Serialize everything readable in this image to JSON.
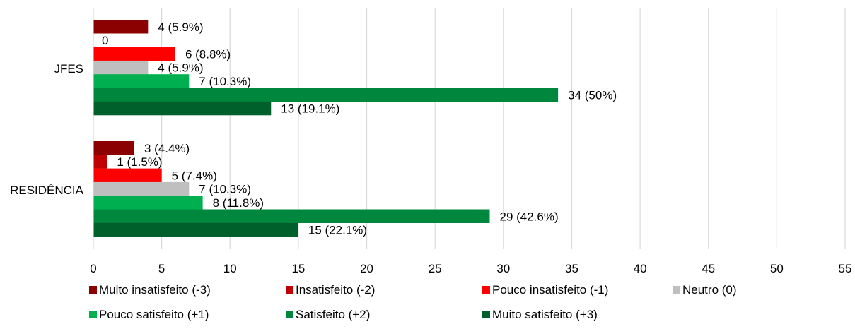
{
  "chart_data": {
    "type": "bar",
    "orientation": "horizontal",
    "title": "",
    "xlabel": "",
    "ylabel": "",
    "xlim": [
      0,
      55
    ],
    "x_ticks": [
      "0",
      "5",
      "10",
      "15",
      "20",
      "25",
      "30",
      "35",
      "40",
      "45",
      "50",
      "55"
    ],
    "grid": true,
    "legend_position": "bottom",
    "categories": [
      "JFES",
      "RESIDÊNCIA"
    ],
    "series": [
      {
        "name": "Muito insatisfeito (-3)",
        "color": "#8B0000",
        "values": [
          4,
          3
        ],
        "labels": [
          "4 (5.9%)",
          "3 (4.4%)"
        ]
      },
      {
        "name": "Insatisfeito (-2)",
        "color": "#C00000",
        "values": [
          0,
          1
        ],
        "labels": [
          "0",
          "1 (1.5%)"
        ]
      },
      {
        "name": "Pouco insatisfeito (-1)",
        "color": "#FF0000",
        "values": [
          6,
          5
        ],
        "labels": [
          "6 (8.8%)",
          "5 (7.4%)"
        ]
      },
      {
        "name": "Neutro (0)",
        "color": "#BFBFBF",
        "values": [
          4,
          7
        ],
        "labels": [
          "4 (5.9%)",
          "7 (10.3%)"
        ]
      },
      {
        "name": "Pouco satisfeito (+1)",
        "color": "#00B050",
        "values": [
          7,
          8
        ],
        "labels": [
          "7 (10.3%)",
          "8 (11.8%)"
        ]
      },
      {
        "name": "Satisfeito (+2)",
        "color": "#00873E",
        "values": [
          34,
          29
        ],
        "labels": [
          "34 (50%)",
          "29 (42.6%)"
        ]
      },
      {
        "name": "Muito satisfeito (+3)",
        "color": "#00602B",
        "values": [
          13,
          15
        ],
        "labels": [
          "13 (19.1%)",
          "15 (22.1%)"
        ]
      }
    ]
  }
}
